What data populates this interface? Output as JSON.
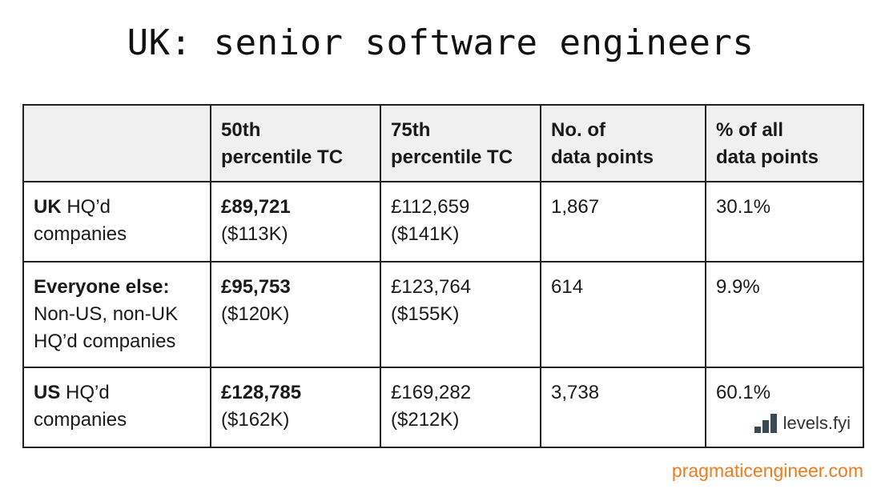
{
  "chart_data": {
    "type": "table",
    "title": "UK: senior software engineers",
    "columns": [
      "",
      "50th percentile TC",
      "75th percentile TC",
      "No. of data points",
      "% of all data points"
    ],
    "rows": [
      {
        "label_bold": "UK",
        "label_rest": " HQ’d companies",
        "p50_gbp": "£89,721",
        "p50_usd": "($113K)",
        "p75_gbp": "£112,659",
        "p75_usd": "($141K)",
        "data_points": "1,867",
        "pct": "30.1%"
      },
      {
        "label_bold": "Everyone else:",
        "label_rest": "Non-US, non-UK HQ’d companies",
        "p50_gbp": "£95,753",
        "p50_usd": "($120K)",
        "p75_gbp": "£123,764",
        "p75_usd": "($155K)",
        "data_points": "614",
        "pct": "9.9%"
      },
      {
        "label_bold": "US",
        "label_rest": " HQ’d companies",
        "p50_gbp": "£128,785",
        "p50_usd": "($162K)",
        "p75_gbp": "£169,282",
        "p75_usd": "($212K)",
        "data_points": "3,738",
        "pct": "60.1%"
      }
    ]
  },
  "header": {
    "col0": "",
    "col1_line1": "50th",
    "col1_line2": "percentile TC",
    "col2_line1": "75th",
    "col2_line2": "percentile TC",
    "col3_line1": "No. of",
    "col3_line2": "data points",
    "col4_line1": "% of all",
    "col4_line2": "data points"
  },
  "brand": {
    "name": "levels.fyi",
    "icon": "levels-fyi-logo-icon",
    "icon_color": "#3a4a52"
  },
  "footer": {
    "text": "pragmaticengineer.com",
    "color": "#f07b1d"
  }
}
